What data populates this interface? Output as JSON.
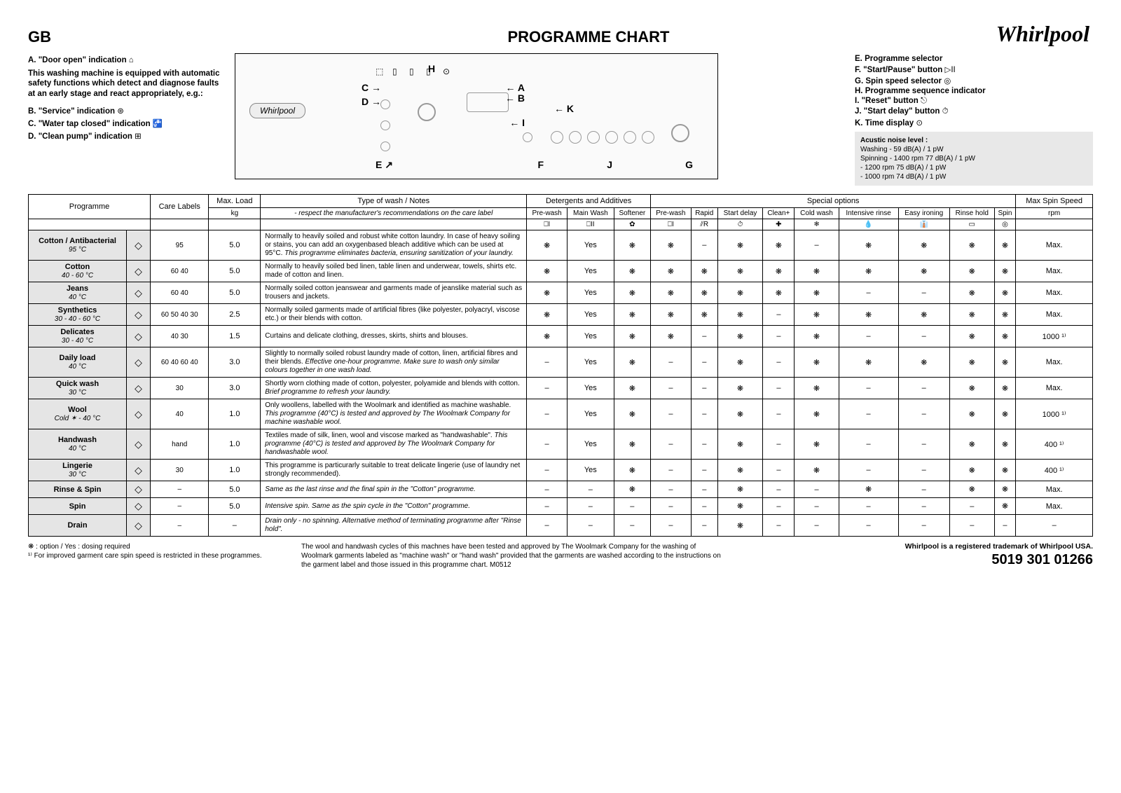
{
  "brand": "Whirlpool",
  "region": "GB",
  "title": "PROGRAMME CHART",
  "left_indications": {
    "A": {
      "label": "A.",
      "text": "\"Door open\" indication"
    },
    "note": "This washing machine is equipped with automatic safety functions which detect and diagnose faults at an early stage and react appropriately, e.g.:",
    "B": {
      "label": "B.",
      "text": "\"Service\" indication"
    },
    "C": {
      "label": "C.",
      "text": "\"Water tap closed\" indication"
    },
    "D": {
      "label": "D.",
      "text": "\"Clean pump\" indication"
    }
  },
  "right_indications": {
    "E": {
      "label": "E.",
      "text": "Programme selector"
    },
    "F": {
      "label": "F.",
      "text": "\"Start/Pause\" button"
    },
    "G": {
      "label": "G.",
      "text": "Spin speed selector"
    },
    "H": {
      "label": "H.",
      "text": "Programme sequence indicator"
    },
    "I": {
      "label": "I.",
      "text": "\"Reset\" button"
    },
    "J": {
      "label": "J.",
      "text": "\"Start delay\" button"
    },
    "K": {
      "label": "K.",
      "text": "Time display"
    }
  },
  "acoustic": {
    "title": "Acustic noise level :",
    "rows": [
      "Washing   -                    59 dB(A) / 1 pW",
      "Spinning  - 1400 rpm   77 dB(A) / 1 pW",
      "              - 1200 rpm   75 dB(A) / 1 pW",
      "              - 1000 rpm   74 dB(A) / 1 pW"
    ]
  },
  "headers": {
    "programme": "Programme",
    "care": "Care Labels",
    "maxload": "Max. Load",
    "maxload_unit": "kg",
    "type": "Type of wash / Notes",
    "type_sub": "- respect the manufacturer's recommendations on the care label",
    "detergents": "Detergents and Additives",
    "det_cols": [
      "Pre-wash",
      "Main Wash",
      "Softener"
    ],
    "special": "Special options",
    "spec_cols": [
      "Pre-wash",
      "Rapid",
      "Start delay",
      "Clean+",
      "Cold wash",
      "Intensive rinse",
      "Easy ironing",
      "Rinse hold",
      "Spin"
    ],
    "maxspin": "Max Spin Speed",
    "maxspin_unit": "rpm"
  },
  "programmes": [
    {
      "name": "Cotton / Antibacterial",
      "temp": "95 °C",
      "care": "95",
      "load": "5.0",
      "notes": "Normally to heavily soiled and robust white cotton laundry. In case of heavy soiling or stains, you can add an oxygenbased bleach additive which can be used at 95°C. This programme eliminates bacteria, ensuring sanitization of your laundry.",
      "det": [
        "❋",
        "Yes",
        "❋"
      ],
      "spec": [
        "❋",
        "–",
        "❋",
        "❋",
        "–",
        "❋",
        "❋",
        "❋",
        "❋"
      ],
      "spin": "Max."
    },
    {
      "name": "Cotton",
      "temp": "40 - 60 °C",
      "care": "60 40",
      "load": "5.0",
      "notes": "Normally to heavily soiled bed linen, table linen and underwear, towels, shirts etc. made of cotton and linen.",
      "det": [
        "❋",
        "Yes",
        "❋"
      ],
      "spec": [
        "❋",
        "❋",
        "❋",
        "❋",
        "❋",
        "❋",
        "❋",
        "❋",
        "❋"
      ],
      "spin": "Max."
    },
    {
      "name": "Jeans",
      "temp": "40 °C",
      "care": "60 40",
      "load": "5.0",
      "notes": "Normally soiled cotton jeanswear and garments made of jeanslike material such as trousers and jackets.",
      "det": [
        "❋",
        "Yes",
        "❋"
      ],
      "spec": [
        "❋",
        "❋",
        "❋",
        "❋",
        "❋",
        "–",
        "–",
        "❋",
        "❋"
      ],
      "spin": "Max."
    },
    {
      "name": "Synthetics",
      "temp": "30 - 40 - 60 °C",
      "care": "60 50 40 30",
      "load": "2.5",
      "notes": "Normally soiled garments made of artificial fibres (like polyester, polyacryl, viscose etc.) or their blends with cotton.",
      "det": [
        "❋",
        "Yes",
        "❋"
      ],
      "spec": [
        "❋",
        "❋",
        "❋",
        "–",
        "❋",
        "❋",
        "❋",
        "❋",
        "❋"
      ],
      "spin": "Max."
    },
    {
      "name": "Delicates",
      "temp": "30 - 40 °C",
      "care": "40 30",
      "load": "1.5",
      "notes": "Curtains and delicate clothing, dresses, skirts, shirts and blouses.",
      "det": [
        "❋",
        "Yes",
        "❋"
      ],
      "spec": [
        "❋",
        "–",
        "❋",
        "–",
        "❋",
        "–",
        "–",
        "❋",
        "❋"
      ],
      "spin": "1000 ¹⁾"
    },
    {
      "name": "Daily load",
      "temp": "40 °C",
      "care": "60 40 60 40",
      "load": "3.0",
      "notes": "Slightly to normally soiled robust laundry made of cotton, linen, artificial fibres and their blends. Effective one-hour programme. Make sure to wash only similar colours together in one wash load.",
      "det": [
        "–",
        "Yes",
        "❋"
      ],
      "spec": [
        "–",
        "–",
        "❋",
        "–",
        "❋",
        "❋",
        "❋",
        "❋",
        "❋"
      ],
      "spin": "Max."
    },
    {
      "name": "Quick wash",
      "temp": "30 °C",
      "care": "30",
      "load": "3.0",
      "notes": "Shortly worn clothing made of cotton, polyester, polyamide and blends with cotton. Brief programme to refresh your laundry.",
      "det": [
        "–",
        "Yes",
        "❋"
      ],
      "spec": [
        "–",
        "–",
        "❋",
        "–",
        "❋",
        "–",
        "–",
        "❋",
        "❋"
      ],
      "spin": "Max."
    },
    {
      "name": "Wool",
      "temp": "Cold ✶ - 40 °C",
      "care": "40",
      "load": "1.0",
      "notes": "Only woollens, labelled with the Woolmark and identified as machine washable. This programme (40°C) is tested and approved by The Woolmark Company for machine washable wool.",
      "det": [
        "–",
        "Yes",
        "❋"
      ],
      "spec": [
        "–",
        "–",
        "❋",
        "–",
        "❋",
        "–",
        "–",
        "❋",
        "❋"
      ],
      "spin": "1000 ¹⁾"
    },
    {
      "name": "Handwash",
      "temp": "40 °C",
      "care": "hand",
      "load": "1.0",
      "notes": "Textiles made of silk, linen, wool and viscose marked as \"handwashable\". This programme (40°C) is tested and approved by The Woolmark Company for handwashable wool.",
      "det": [
        "–",
        "Yes",
        "❋"
      ],
      "spec": [
        "–",
        "–",
        "❋",
        "–",
        "❋",
        "–",
        "–",
        "❋",
        "❋"
      ],
      "spin": "400 ¹⁾"
    },
    {
      "name": "Lingerie",
      "temp": "30 °C",
      "care": "30",
      "load": "1.0",
      "notes": "This programme is particurarly suitable to treat delicate lingerie (use of laundry net strongly recommended).",
      "det": [
        "–",
        "Yes",
        "❋"
      ],
      "spec": [
        "–",
        "–",
        "❋",
        "–",
        "❋",
        "–",
        "–",
        "❋",
        "❋"
      ],
      "spin": "400 ¹⁾"
    },
    {
      "name": "Rinse & Spin",
      "temp": "",
      "care": "–",
      "load": "5.0",
      "notes": "Same as the last rinse and the final spin in the \"Cotton\" programme.",
      "det": [
        "–",
        "–",
        "❋"
      ],
      "spec": [
        "–",
        "–",
        "❋",
        "–",
        "–",
        "❋",
        "–",
        "❋",
        "❋"
      ],
      "spin": "Max."
    },
    {
      "name": "Spin",
      "temp": "",
      "care": "–",
      "load": "5.0",
      "notes": "Intensive spin. Same as the spin cycle in the \"Cotton\" programme.",
      "det": [
        "–",
        "–",
        "–"
      ],
      "spec": [
        "–",
        "–",
        "❋",
        "–",
        "–",
        "–",
        "–",
        "–",
        "❋"
      ],
      "spin": "Max."
    },
    {
      "name": "Drain",
      "temp": "",
      "care": "–",
      "load": "–",
      "notes": "Drain only - no spinning. Alternative method of terminating programme after \"Rinse hold\".",
      "det": [
        "–",
        "–",
        "–"
      ],
      "spec": [
        "–",
        "–",
        "❋",
        "–",
        "–",
        "–",
        "–",
        "–",
        "–"
      ],
      "spin": "–"
    }
  ],
  "footnotes": {
    "fn1": "❋ :  option / Yes : dosing required\n¹⁾   For improved garment care spin speed is restricted in these programmes.",
    "fn2": "The wool and handwash cycles of this machnes have been tested and approved by The Woolmark Company for the washing of Woolmark garments labeled as \"machine wash\" or \"hand wash\" provided that the garments are washed according to the instructions on the garment label and those issued in this programme chart.        M0512"
  },
  "trademark": "Whirlpool is a registered trademark of Whirlpool USA.",
  "docnum": "5019 301 01266"
}
